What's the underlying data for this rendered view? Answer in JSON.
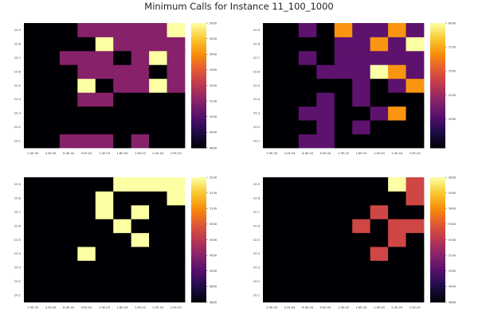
{
  "title": "Minimum Calls for Instance 11_100_1000",
  "chart_data": [
    {
      "type": "heatmap",
      "x_tick_labels": [
        "2.5E-05",
        "3.3E-04",
        "6.4E-04",
        "9.5E-04",
        "1.3E-03",
        "1.6E-03",
        "1.9E-03",
        "2.2E-03",
        "2.5E-03"
      ],
      "y_tick_labels": [
        "C0.1",
        "C0.2",
        "C0.3",
        "C0.4",
        "C0.5",
        "C0.6",
        "C0.7",
        "C0.8",
        "C0.9"
      ],
      "colorbar_ticks": [
        4800,
        4900,
        5000,
        5100,
        5200,
        5300,
        5400,
        5500,
        5600
      ],
      "clim": [
        4800,
        5600
      ],
      "colormap": "inferno",
      "values": [
        [
          4800,
          4800,
          5100,
          5100,
          5100,
          4800,
          5100,
          4800,
          4800
        ],
        [
          4800,
          4800,
          4800,
          4800,
          4800,
          4800,
          4800,
          4800,
          4800
        ],
        [
          4800,
          4800,
          4800,
          4800,
          4800,
          4800,
          4800,
          4800,
          4800
        ],
        [
          4800,
          4800,
          4800,
          5100,
          5100,
          4800,
          4800,
          4800,
          4800
        ],
        [
          4800,
          4800,
          4800,
          5600,
          4800,
          5100,
          5100,
          5600,
          5100
        ],
        [
          4800,
          4800,
          4800,
          5100,
          5100,
          5100,
          5100,
          4800,
          5100
        ],
        [
          4800,
          4800,
          5100,
          5100,
          5100,
          4800,
          5100,
          5600,
          5100
        ],
        [
          4800,
          4800,
          4800,
          4800,
          5600,
          5100,
          5100,
          5100,
          5100
        ],
        [
          4800,
          4800,
          4800,
          5100,
          5100,
          5100,
          5100,
          5100,
          5600
        ]
      ]
    },
    {
      "type": "heatmap",
      "x_tick_labels": [
        "2.5E-05",
        "3.3E-04",
        "6.4E-04",
        "9.5E-04",
        "1.3E-03",
        "1.6E-03",
        "1.9E-03",
        "2.2E-03",
        "2.5E-03"
      ],
      "y_tick_labels": [
        "C0.1",
        "C0.2",
        "C0.3",
        "C0.4",
        "C0.5",
        "C0.6",
        "C0.7",
        "C0.8",
        "C0.9"
      ],
      "colorbar_ticks": [
        5000,
        5250,
        5500,
        5750,
        6000
      ],
      "clim": [
        4700,
        6000
      ],
      "colormap": "inferno",
      "values": [
        [
          4700,
          4700,
          5050,
          5050,
          4700,
          4700,
          4700,
          4700,
          4700
        ],
        [
          4700,
          4700,
          4700,
          5050,
          4700,
          5050,
          4700,
          4700,
          4700
        ],
        [
          4700,
          4700,
          5050,
          5050,
          4700,
          4700,
          5050,
          5700,
          4700
        ],
        [
          4700,
          4700,
          4700,
          5050,
          4700,
          5050,
          4700,
          4700,
          4700
        ],
        [
          4700,
          4700,
          4700,
          4700,
          4700,
          5050,
          4700,
          5050,
          5700
        ],
        [
          4700,
          4700,
          4700,
          5050,
          5050,
          5050,
          6000,
          5700,
          5050
        ],
        [
          4700,
          4700,
          5050,
          4700,
          5050,
          5050,
          5050,
          5050,
          5050
        ],
        [
          4700,
          4700,
          4700,
          4700,
          5050,
          5050,
          5700,
          5050,
          6000
        ],
        [
          4700,
          4700,
          5050,
          4700,
          5700,
          5050,
          5050,
          5700,
          5050
        ]
      ]
    },
    {
      "type": "heatmap",
      "x_tick_labels": [
        "2.5E-05",
        "3.3E-04",
        "6.4E-04",
        "9.5E-04",
        "1.3E-03",
        "1.6E-03",
        "1.9E-03",
        "2.2E-03",
        "2.5E-03"
      ],
      "y_tick_labels": [
        "C0.1",
        "C0.2",
        "C0.3",
        "C0.4",
        "C0.5",
        "C0.6",
        "C0.7",
        "C0.8",
        "C0.9"
      ],
      "colorbar_ticks": [
        4800,
        4850,
        4900,
        4950,
        5000,
        5050,
        5100,
        5150,
        5200
      ],
      "clim": [
        4800,
        5200
      ],
      "colormap": "inferno",
      "values": [
        [
          4800,
          4800,
          4800,
          4800,
          4800,
          4800,
          4800,
          4800,
          4800
        ],
        [
          4800,
          4800,
          4800,
          4800,
          4800,
          4800,
          4800,
          4800,
          4800
        ],
        [
          4800,
          4800,
          4800,
          4800,
          4800,
          4800,
          4800,
          4800,
          4800
        ],
        [
          4800,
          4800,
          4800,
          5200,
          4800,
          4800,
          4800,
          4800,
          4800
        ],
        [
          4800,
          4800,
          4800,
          4800,
          4800,
          4800,
          5200,
          4800,
          4800
        ],
        [
          4800,
          4800,
          4800,
          4800,
          4800,
          5200,
          4800,
          4800,
          4800
        ],
        [
          4800,
          4800,
          4800,
          4800,
          5200,
          4800,
          5200,
          4800,
          4800
        ],
        [
          4800,
          4800,
          4800,
          4800,
          5200,
          4800,
          4800,
          4800,
          5200
        ],
        [
          4800,
          4800,
          4800,
          4800,
          4800,
          5200,
          5200,
          5200,
          5200
        ]
      ]
    },
    {
      "type": "heatmap",
      "x_tick_labels": [
        "2.5E-05",
        "3.3E-04",
        "6.4E-04",
        "9.5E-04",
        "1.3E-03",
        "1.6E-03",
        "1.9E-03",
        "2.2E-03",
        "2.5E-03"
      ],
      "y_tick_labels": [
        "C0.1",
        "C0.2",
        "C0.3",
        "C0.4",
        "C0.5",
        "C0.6",
        "C0.7",
        "C0.8",
        "C0.9"
      ],
      "colorbar_ticks": [
        4800,
        4900,
        5000,
        5100,
        5200,
        5300,
        5400,
        5500,
        5600
      ],
      "clim": [
        4800,
        5600
      ],
      "colormap": "inferno",
      "values": [
        [
          4800,
          4800,
          4800,
          4800,
          4800,
          4800,
          4800,
          4800,
          4800
        ],
        [
          4800,
          4800,
          4800,
          4800,
          4800,
          4800,
          4800,
          4800,
          4800
        ],
        [
          4800,
          4800,
          4800,
          4800,
          4800,
          4800,
          4800,
          4800,
          4800
        ],
        [
          4800,
          4800,
          4800,
          4800,
          4800,
          4800,
          5250,
          4800,
          4800
        ],
        [
          4800,
          4800,
          4800,
          4800,
          4800,
          4800,
          4800,
          5250,
          4800
        ],
        [
          4800,
          4800,
          4800,
          4800,
          4800,
          5250,
          4800,
          5250,
          5250
        ],
        [
          4800,
          4800,
          4800,
          4800,
          4800,
          4800,
          5250,
          4800,
          4800
        ],
        [
          4800,
          4800,
          4800,
          4800,
          4800,
          4800,
          4800,
          4800,
          5250
        ],
        [
          4800,
          4800,
          4800,
          4800,
          4800,
          4800,
          4800,
          5600,
          5250
        ]
      ]
    }
  ]
}
